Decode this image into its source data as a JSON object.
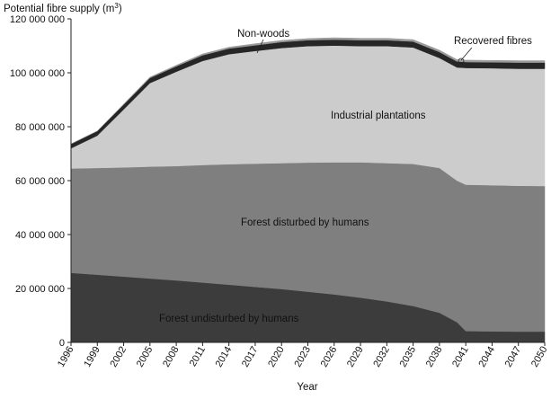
{
  "chart_data": {
    "type": "area",
    "stacked": true,
    "ylabel": "Potential fibre supply (m",
    "ylabel_superscript": "3",
    "ylabel_suffix": ")",
    "xlabel": "Year",
    "xlim": [
      1996,
      2050
    ],
    "ylim": [
      0,
      120000000
    ],
    "yticks": [
      0,
      20000000,
      40000000,
      60000000,
      80000000,
      100000000,
      120000000
    ],
    "ytick_labels": [
      "0",
      "20 000 000",
      "40 000 000",
      "60 000 000",
      "80 000 000",
      "100 000 000",
      "120 000 000"
    ],
    "xticks": [
      1996,
      1999,
      2002,
      2005,
      2008,
      2011,
      2014,
      2017,
      2020,
      2023,
      2026,
      2029,
      2032,
      2035,
      2038,
      2041,
      2044,
      2047,
      2050
    ],
    "x": [
      1996,
      1999,
      2002,
      2005,
      2008,
      2011,
      2014,
      2017,
      2020,
      2023,
      2026,
      2029,
      2032,
      2035,
      2038,
      2040,
      2041,
      2044,
      2047,
      2050
    ],
    "series": [
      {
        "name": "Forest undisturbed by humans",
        "color": "#3c3c3c",
        "values": [
          25800000,
          25100000,
          24400000,
          23700000,
          23000000,
          22200000,
          21400000,
          20600000,
          19800000,
          18800000,
          17800000,
          16600000,
          15200000,
          13500000,
          11000000,
          7500000,
          4200000,
          4100000,
          4000000,
          4000000
        ]
      },
      {
        "name": "Forest disturbed by humans",
        "color": "#7f7f7f",
        "values": [
          38700000,
          39600000,
          40500000,
          41500000,
          42400000,
          43600000,
          44700000,
          45700000,
          46700000,
          47900000,
          49000000,
          50200000,
          51300000,
          52700000,
          53700000,
          52500000,
          54300000,
          54200000,
          54100000,
          54000000
        ]
      },
      {
        "name": "Industrial plantations",
        "color": "#cccccc",
        "values": [
          7500000,
          12000000,
          21500000,
          31000000,
          35000000,
          38600000,
          40800000,
          41800000,
          42700000,
          43200000,
          43300000,
          43100000,
          43400000,
          43200000,
          40800000,
          42000000,
          43300000,
          43400000,
          43400000,
          43500000
        ]
      },
      {
        "name": "Non-woods",
        "color": "#262626",
        "values": [
          1600000,
          1700000,
          1800000,
          1900000,
          2000000,
          2100000,
          2100000,
          2100000,
          2200000,
          2200000,
          2200000,
          2200000,
          2200000,
          2200000,
          2200000,
          2200000,
          2200000,
          2200000,
          2300000,
          2300000
        ]
      },
      {
        "name": "Recovered fibres",
        "color": "#9a9a9a",
        "values": [
          0,
          0,
          200000,
          300000,
          400000,
          500000,
          500000,
          600000,
          600000,
          600000,
          700000,
          700000,
          700000,
          700000,
          700000,
          700000,
          700000,
          700000,
          700000,
          700000
        ]
      }
    ],
    "annotations": [
      {
        "text": "Non-woods",
        "series": "Non-woods"
      },
      {
        "text": "Recovered fibres",
        "series": "Recovered fibres"
      },
      {
        "text": "Industrial plantations",
        "series": "Industrial plantations"
      },
      {
        "text": "Forest disturbed by humans",
        "series": "Forest disturbed by humans"
      },
      {
        "text": "Forest undisturbed by humans",
        "series": "Forest undisturbed by humans"
      }
    ],
    "grid": false,
    "legend": "none"
  }
}
